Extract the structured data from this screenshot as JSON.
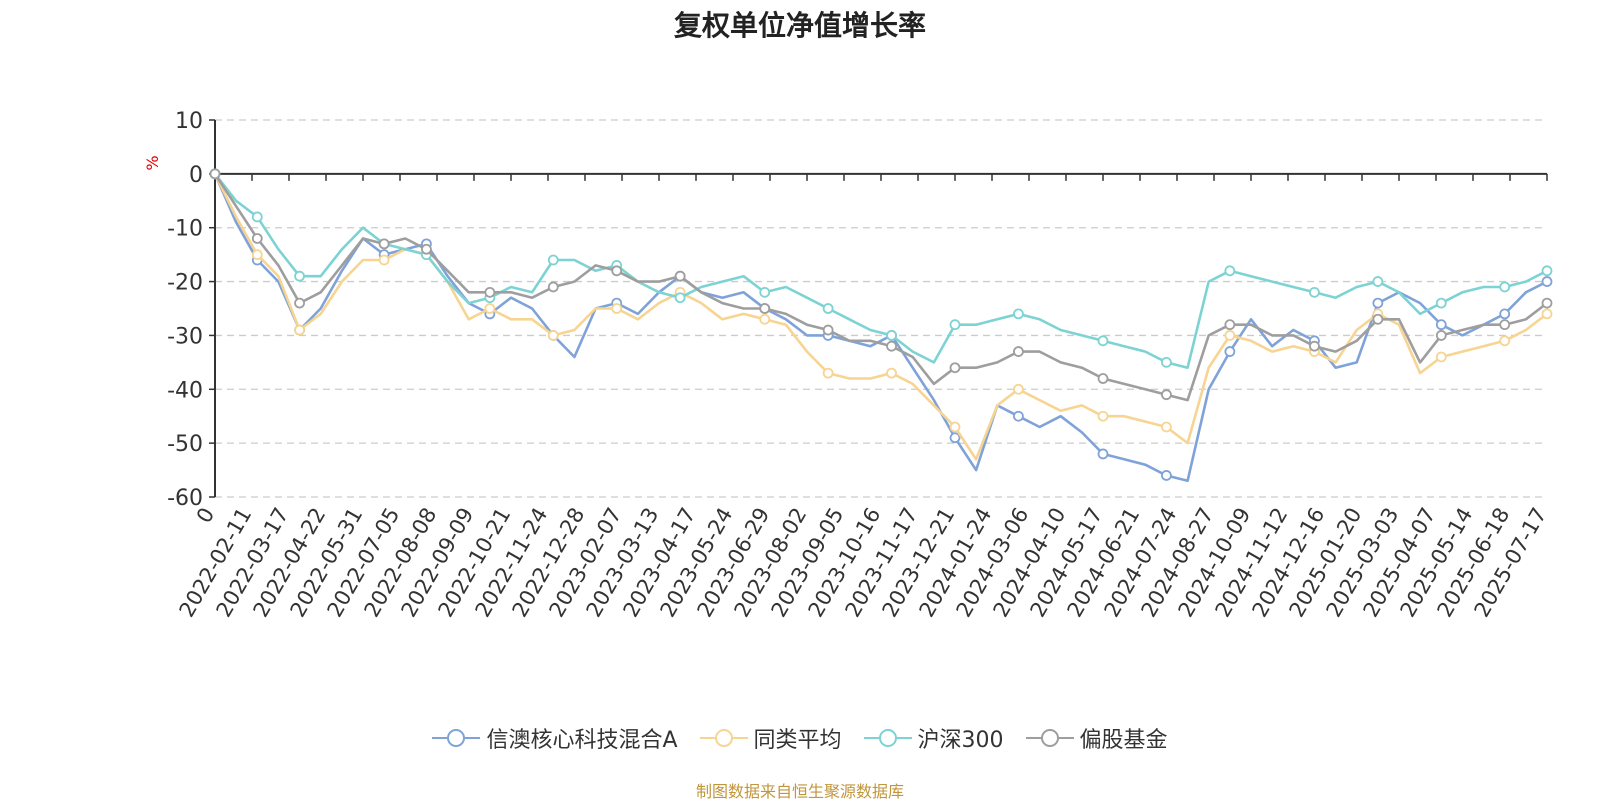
{
  "chart_data": {
    "type": "line",
    "title": "复权单位净值增长率",
    "ylabel": "%",
    "ylim": [
      -60,
      10
    ],
    "yticks": [
      10,
      0,
      -10,
      -20,
      -30,
      -40,
      -50,
      -60
    ],
    "grid": true,
    "legend_position": "bottom",
    "x_tick_labels": [
      "0",
      "2022-02-11",
      "2022-03-17",
      "2022-04-22",
      "2022-05-31",
      "2022-07-05",
      "2022-08-08",
      "2022-09-09",
      "2022-10-21",
      "2022-11-24",
      "2022-12-28",
      "2023-02-07",
      "2023-03-13",
      "2023-04-17",
      "2023-05-24",
      "2023-06-29",
      "2023-08-02",
      "2023-09-05",
      "2023-10-16",
      "2023-11-17",
      "2023-12-21",
      "2024-01-24",
      "2024-03-06",
      "2024-04-10",
      "2024-05-17",
      "2024-06-21",
      "2024-07-24",
      "2024-08-27",
      "2024-10-09",
      "2024-11-12",
      "2024-12-16",
      "2025-01-20",
      "2025-03-03",
      "2025-04-07",
      "2025-05-14",
      "2025-06-18",
      "2025-07-17"
    ],
    "series": [
      {
        "name": "信澳核心科技混合A",
        "color": "#7fa3d8",
        "values": [
          0,
          -9,
          -16,
          -20,
          -29,
          -25,
          -18,
          -12,
          -15,
          -14,
          -13,
          -19,
          -24,
          -26,
          -23,
          -25,
          -30,
          -34,
          -25,
          -24,
          -26,
          -22,
          -19,
          -22,
          -23,
          -22,
          -25,
          -27,
          -30,
          -30,
          -31,
          -32,
          -30,
          -36,
          -42,
          -49,
          -55,
          -43,
          -45,
          -47,
          -45,
          -48,
          -52,
          -53,
          -54,
          -56,
          -57,
          -40,
          -33,
          -27,
          -32,
          -29,
          -31,
          -36,
          -35,
          -24,
          -22,
          -24,
          -28,
          -30,
          -28,
          -26,
          -22,
          -20
        ],
        "markers": [
          0,
          2,
          4,
          8,
          10,
          13,
          16,
          19,
          22,
          26,
          29,
          32,
          35,
          38,
          42,
          45,
          48,
          52,
          55,
          58,
          61,
          63
        ]
      },
      {
        "name": "同类平均",
        "color": "#f7d491",
        "values": [
          0,
          -8,
          -15,
          -19,
          -29,
          -26,
          -20,
          -16,
          -16,
          -14,
          -15,
          -20,
          -27,
          -25,
          -27,
          -27,
          -30,
          -29,
          -25,
          -25,
          -27,
          -24,
          -22,
          -24,
          -27,
          -26,
          -27,
          -28,
          -33,
          -37,
          -38,
          -38,
          -37,
          -39,
          -43,
          -47,
          -53,
          -43,
          -40,
          -42,
          -44,
          -43,
          -45,
          -45,
          -46,
          -47,
          -50,
          -36,
          -30,
          -31,
          -33,
          -32,
          -33,
          -35,
          -29,
          -26,
          -28,
          -37,
          -34,
          -33,
          -32,
          -31,
          -29,
          -26
        ],
        "markers": [
          0,
          2,
          4,
          8,
          10,
          13,
          16,
          19,
          22,
          26,
          29,
          32,
          35,
          38,
          42,
          45,
          48,
          52,
          55,
          58,
          61,
          63
        ]
      },
      {
        "name": "沪深300",
        "color": "#7dd3d3",
        "values": [
          0,
          -5,
          -8,
          -14,
          -19,
          -19,
          -14,
          -10,
          -13,
          -14,
          -15,
          -20,
          -24,
          -23,
          -21,
          -22,
          -16,
          -16,
          -18,
          -17,
          -20,
          -22,
          -23,
          -21,
          -20,
          -19,
          -22,
          -21,
          -23,
          -25,
          -27,
          -29,
          -30,
          -33,
          -35,
          -28,
          -28,
          -27,
          -26,
          -27,
          -29,
          -30,
          -31,
          -32,
          -33,
          -35,
          -36,
          -20,
          -18,
          -19,
          -20,
          -21,
          -22,
          -23,
          -21,
          -20,
          -22,
          -26,
          -24,
          -22,
          -21,
          -21,
          -20,
          -18
        ],
        "markers": [
          0,
          2,
          4,
          8,
          10,
          13,
          16,
          19,
          22,
          26,
          29,
          32,
          35,
          38,
          42,
          45,
          48,
          52,
          55,
          58,
          61,
          63
        ]
      },
      {
        "name": "偏股基金",
        "color": "#9e9e9e",
        "values": [
          0,
          -6,
          -12,
          -17,
          -24,
          -22,
          -17,
          -12,
          -13,
          -12,
          -14,
          -18,
          -22,
          -22,
          -22,
          -23,
          -21,
          -20,
          -17,
          -18,
          -20,
          -20,
          -19,
          -22,
          -24,
          -25,
          -25,
          -26,
          -28,
          -29,
          -31,
          -31,
          -32,
          -34,
          -39,
          -36,
          -36,
          -35,
          -33,
          -33,
          -35,
          -36,
          -38,
          -39,
          -40,
          -41,
          -42,
          -30,
          -28,
          -28,
          -30,
          -30,
          -32,
          -33,
          -31,
          -27,
          -27,
          -35,
          -30,
          -29,
          -28,
          -28,
          -27,
          -24
        ],
        "markers": [
          0,
          2,
          4,
          8,
          10,
          13,
          16,
          19,
          22,
          26,
          29,
          32,
          35,
          38,
          42,
          45,
          48,
          52,
          55,
          58,
          61,
          63
        ]
      }
    ]
  },
  "source_note": "制图数据来自恒生聚源数据库"
}
